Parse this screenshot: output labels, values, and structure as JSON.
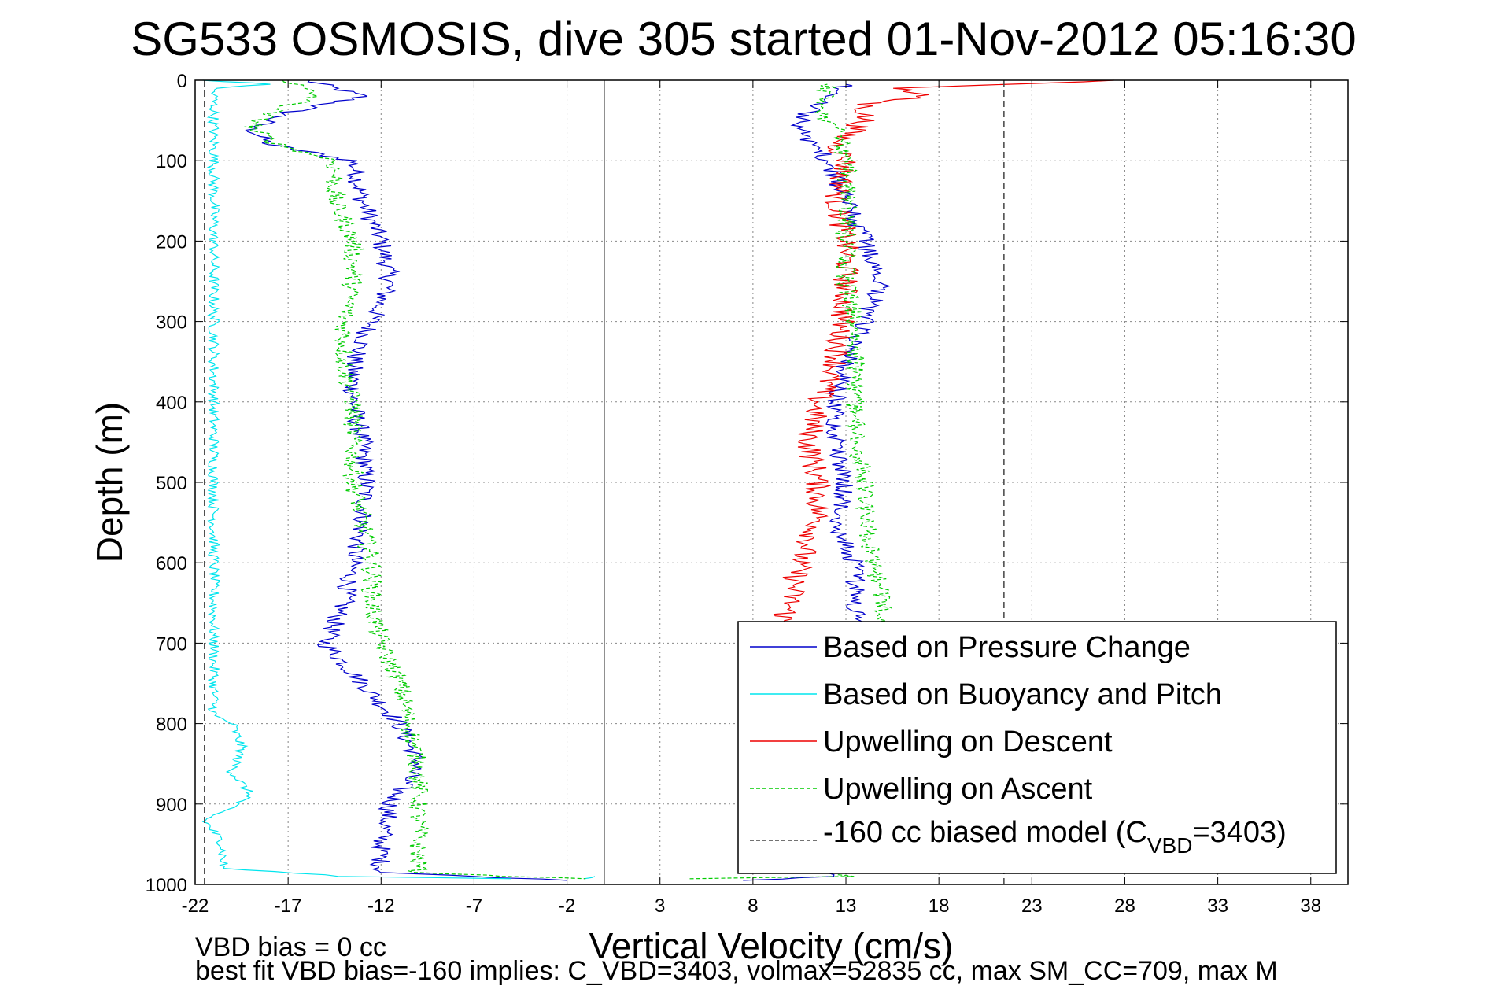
{
  "chart_data": {
    "type": "line",
    "title": "SG533 OSMOSIS, dive 305 started 01-Nov-2012 05:16:30",
    "xlabel": "Vertical Velocity (cm/s)",
    "ylabel": "Depth (m)",
    "xlim": [
      -22,
      40
    ],
    "ylim": [
      1000,
      0
    ],
    "y_inverted": true,
    "xticks": [
      -22,
      -17,
      -12,
      -7,
      -2,
      3,
      8,
      13,
      18,
      23,
      28,
      33,
      38
    ],
    "xtick_labels": [
      "-22",
      "-17",
      "-12",
      "-7",
      "-2",
      "3",
      "8",
      "13",
      "18",
      "23",
      "28",
      "33",
      "38"
    ],
    "yticks": [
      0,
      100,
      200,
      300,
      400,
      500,
      600,
      700,
      800,
      900,
      1000
    ],
    "ytick_labels": [
      "0",
      "100",
      "200",
      "300",
      "400",
      "500",
      "600",
      "700",
      "800",
      "900",
      "1000"
    ],
    "grid": true,
    "legend_position": "bottom-right",
    "zero_line_x": 0,
    "footer_lines": [
      "VBD bias = 0 cc",
      "best fit VBD bias=-160 implies: C_VBD=3403, volmax=52835 cc, max SM_CC=709, max M"
    ],
    "legend": {
      "entries": [
        {
          "text": "Based on Pressure Change",
          "color": "#0000cc",
          "dash": "solid"
        },
        {
          "text": "Based on Buoyancy and Pitch",
          "color": "#00e5ee",
          "dash": "solid"
        },
        {
          "text": "Upwelling on Descent",
          "color": "#ee0000",
          "dash": "solid"
        },
        {
          "text": "Upwelling on Ascent",
          "color": "#00cc00",
          "dash": "dashed"
        }
      ],
      "model_entry": {
        "pre": "-160 cc biased model (C",
        "sub": "VBD",
        "post": "=3403)",
        "color": "#444444",
        "dash": "dashed"
      }
    },
    "series": [
      {
        "name": "Based on Pressure Change",
        "color": "#0000cc",
        "dash": "solid",
        "descent": {
          "depth": [
            0,
            20,
            40,
            60,
            80,
            100,
            150,
            200,
            250,
            300,
            350,
            400,
            450,
            500,
            550,
            600,
            650,
            700,
            750,
            800,
            850,
            900,
            950,
            985,
            990,
            995
          ],
          "v": [
            -16,
            -13,
            -17,
            -19,
            -18,
            -13.5,
            -13,
            -12,
            -11.5,
            -12.5,
            -13.5,
            -13.5,
            -13,
            -12.8,
            -13,
            -13.5,
            -14,
            -15,
            -13,
            -11,
            -10,
            -11.5,
            -12,
            -12,
            -7,
            -2
          ]
        },
        "ascent": {
          "depth": [
            995,
            990,
            960,
            900,
            800,
            700,
            650,
            600,
            550,
            500,
            450,
            400,
            350,
            300,
            250,
            200,
            150,
            100,
            60,
            40,
            20,
            5
          ],
          "v": [
            8,
            12.5,
            13,
            13,
            13,
            13.5,
            13.5,
            13.5,
            12.5,
            13,
            12.5,
            12.5,
            13,
            14,
            15,
            14,
            13,
            12,
            10.5,
            11,
            12,
            13
          ]
        }
      },
      {
        "name": "Based on Buoyancy and Pitch",
        "color": "#00e5ee",
        "dash": "solid",
        "descent": {
          "depth": [
            0,
            5,
            10,
            790,
            800,
            830,
            860,
            890,
            920,
            950,
            980,
            990,
            993
          ],
          "v": [
            -21.5,
            -18,
            -21,
            -21,
            -20,
            -19.5,
            -20,
            -19,
            -21.5,
            -20.5,
            -20.5,
            -14,
            -5
          ]
        },
        "ascent": {
          "depth": [
            993,
            990
          ],
          "v": [
            -1,
            -0.5
          ]
        }
      },
      {
        "name": "Upwelling on Descent",
        "color": "#ee0000",
        "dash": "solid",
        "points": {
          "depth": [
            0,
            10,
            20,
            30,
            50,
            80,
            100,
            150,
            200,
            250,
            300,
            350,
            400,
            450,
            500,
            550,
            600,
            650,
            680
          ],
          "v": [
            28,
            16,
            17,
            14,
            14,
            12.5,
            13,
            12.5,
            13,
            13,
            12.8,
            12.5,
            11.5,
            11,
            11.5,
            11.5,
            10.5,
            10,
            9.5
          ]
        }
      },
      {
        "name": "Upwelling on Ascent",
        "color": "#00cc00",
        "dash": "dashed",
        "descent": {
          "depth": [
            0,
            20,
            40,
            60,
            80,
            100,
            150,
            200,
            250,
            300,
            350,
            400,
            450,
            500,
            550,
            600,
            650,
            700,
            750,
            800,
            850,
            900,
            950,
            985,
            990,
            993
          ],
          "v": [
            -17,
            -15.5,
            -18,
            -19,
            -17.5,
            -14.5,
            -14.5,
            -13.5,
            -13.5,
            -14,
            -14,
            -13.5,
            -13.5,
            -13.5,
            -13,
            -12.5,
            -12.5,
            -12,
            -11,
            -10.5,
            -10,
            -10,
            -10,
            -10,
            -5,
            -1
          ]
        },
        "ascent": {
          "depth": [
            993,
            990,
            960,
            900,
            800,
            700,
            650,
            600,
            550,
            500,
            450,
            400,
            350,
            300,
            250,
            200,
            150,
            100,
            60,
            40,
            20,
            5
          ],
          "v": [
            5,
            13,
            14,
            14,
            14,
            15,
            15,
            14.5,
            14,
            14,
            13.5,
            13.5,
            13.5,
            13.5,
            13,
            13,
            13,
            13,
            12.5,
            11.5,
            12,
            12
          ]
        }
      },
      {
        "name": "-160 cc biased model (CVBD=3403)",
        "color": "#444444",
        "dash": "dashed",
        "segments": [
          {
            "depth": [
              0,
              1000
            ],
            "v": [
              -21.5,
              -21.5
            ]
          },
          {
            "depth": [
              0,
              1000
            ],
            "v": [
              21.5,
              21.5
            ]
          }
        ]
      }
    ]
  }
}
